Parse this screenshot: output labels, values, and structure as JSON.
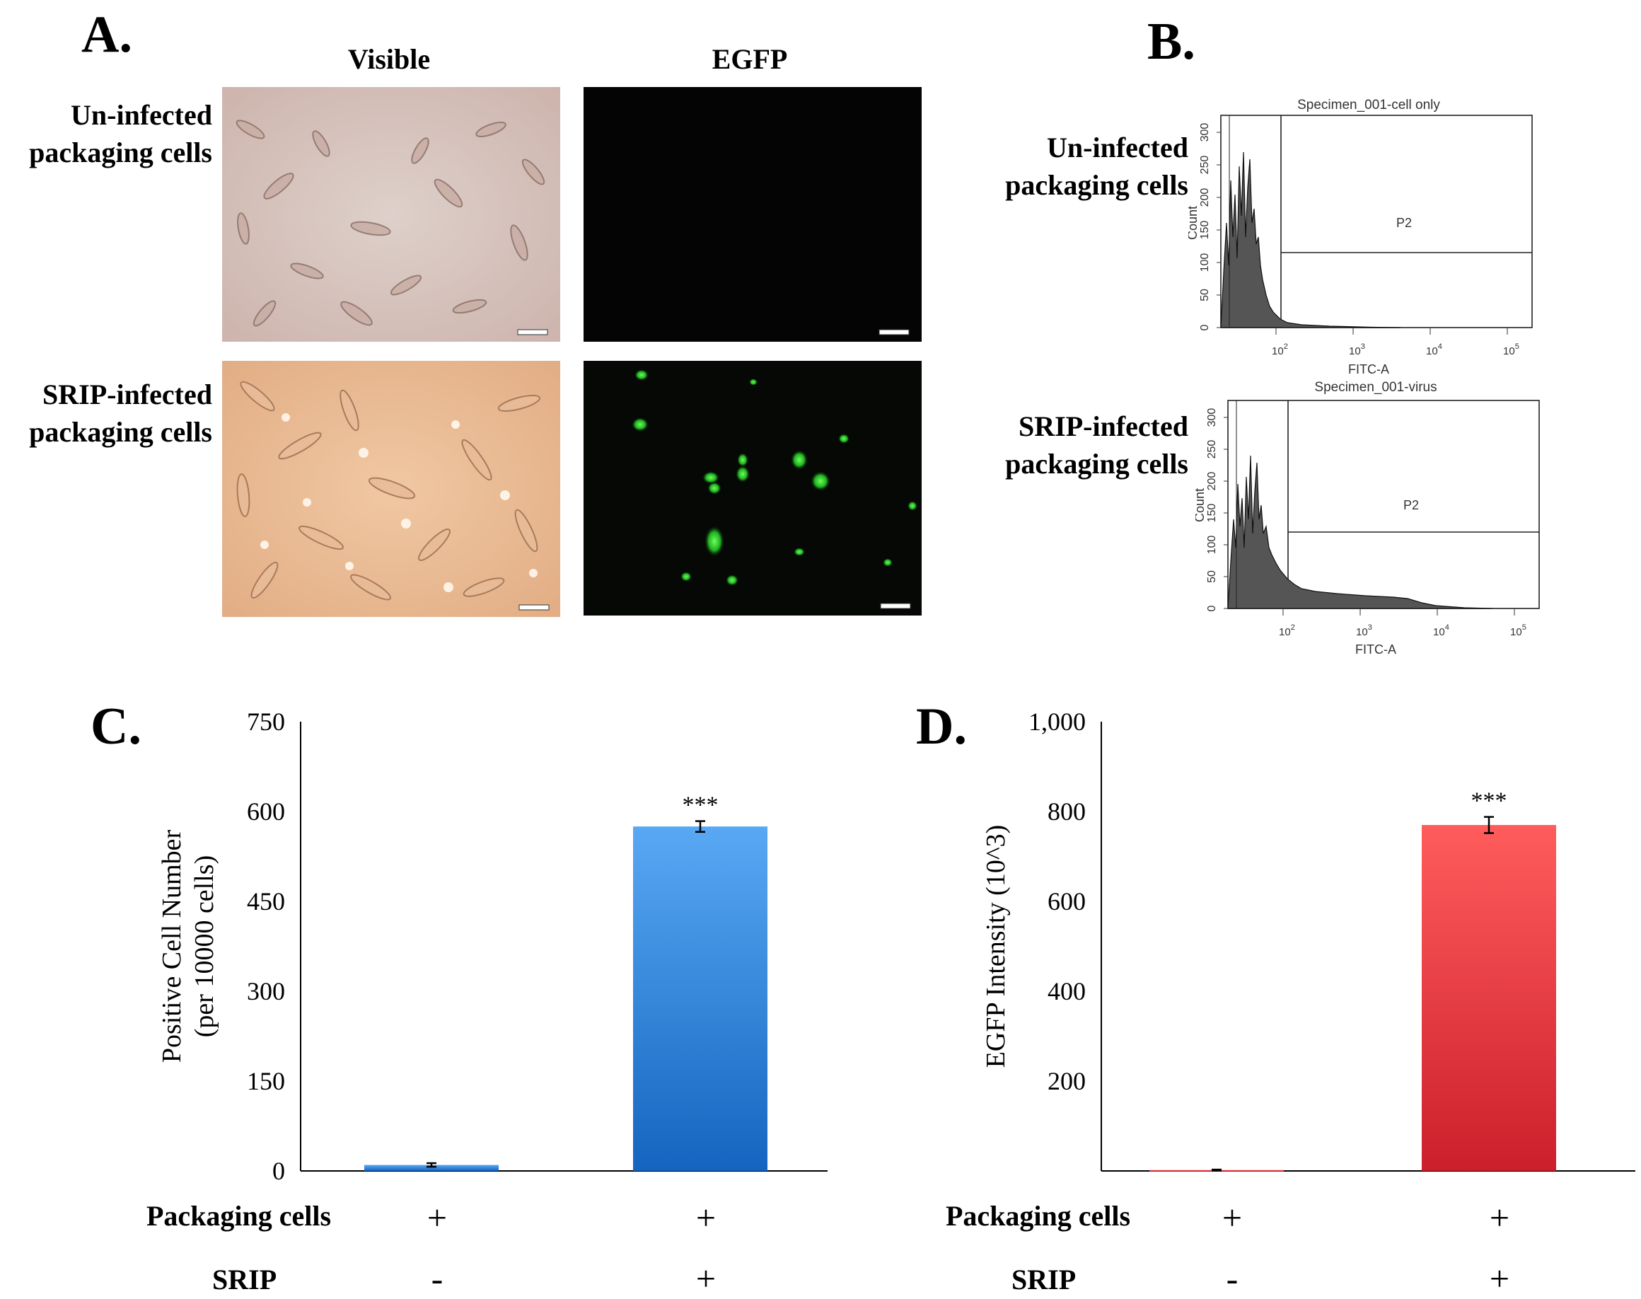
{
  "panels": {
    "a": {
      "letter": "A.",
      "col_visible": "Visible",
      "col_egfp": "EGFP",
      "row1": [
        "Un-infected",
        "packaging cells"
      ],
      "row2": [
        "SRIP-infected",
        "packaging cells"
      ]
    },
    "b": {
      "letter": "B.",
      "row1": [
        "Un-infected",
        "packaging cells"
      ],
      "row2": [
        "SRIP-infected",
        "packaging cells"
      ],
      "hist1": {
        "title": "Specimen_001-cell only",
        "gate": "P2",
        "xlabel": "FITC-A",
        "ylabel": "Count",
        "yticks": [
          "0",
          "50",
          "100",
          "150",
          "200",
          "250",
          "300"
        ],
        "xticks": [
          "10",
          "10",
          "10",
          "10"
        ],
        "xexp": [
          "2",
          "3",
          "4",
          "5"
        ]
      },
      "hist2": {
        "title": "Specimen_001-virus",
        "gate": "P2",
        "xlabel": "FITC-A",
        "ylabel": "Count",
        "yticks": [
          "0",
          "50",
          "100",
          "150",
          "200",
          "250",
          "300"
        ],
        "xticks": [
          "10",
          "10",
          "10",
          "10"
        ],
        "xexp": [
          "2",
          "3",
          "4",
          "5"
        ]
      }
    },
    "c": {
      "letter": "C."
    },
    "d": {
      "letter": "D."
    }
  },
  "chart_data": [
    {
      "type": "bar",
      "ylabel": [
        "Positive Cell Number",
        "(per 10000 cells)"
      ],
      "yticks": [
        "0",
        "150",
        "300",
        "450",
        "600",
        "750"
      ],
      "ylim": [
        0,
        750
      ],
      "values": [
        10,
        575
      ],
      "errors": [
        3,
        9
      ],
      "significance": [
        "",
        "***"
      ],
      "row_labels": [
        "Packaging cells",
        "SRIP"
      ],
      "packaging_cells": [
        "+",
        "+"
      ],
      "srip": [
        "-",
        "+"
      ],
      "color_top": "#58a8f4",
      "color_bottom": "#1565c0"
    },
    {
      "type": "bar",
      "ylabel": [
        "EGFP Intensity (10^3)"
      ],
      "yticks": [
        "1,000",
        "800",
        "600",
        "400",
        "200"
      ],
      "ylim": [
        0,
        1000
      ],
      "values": [
        2,
        770
      ],
      "errors": [
        1,
        18
      ],
      "significance": [
        "",
        "***"
      ],
      "row_labels": [
        "Packaging cells",
        "SRIP"
      ],
      "packaging_cells": [
        "+",
        "+"
      ],
      "srip": [
        "-",
        "+"
      ],
      "color_top": "#ff5c5c",
      "color_bottom": "#cc1f2c"
    }
  ]
}
